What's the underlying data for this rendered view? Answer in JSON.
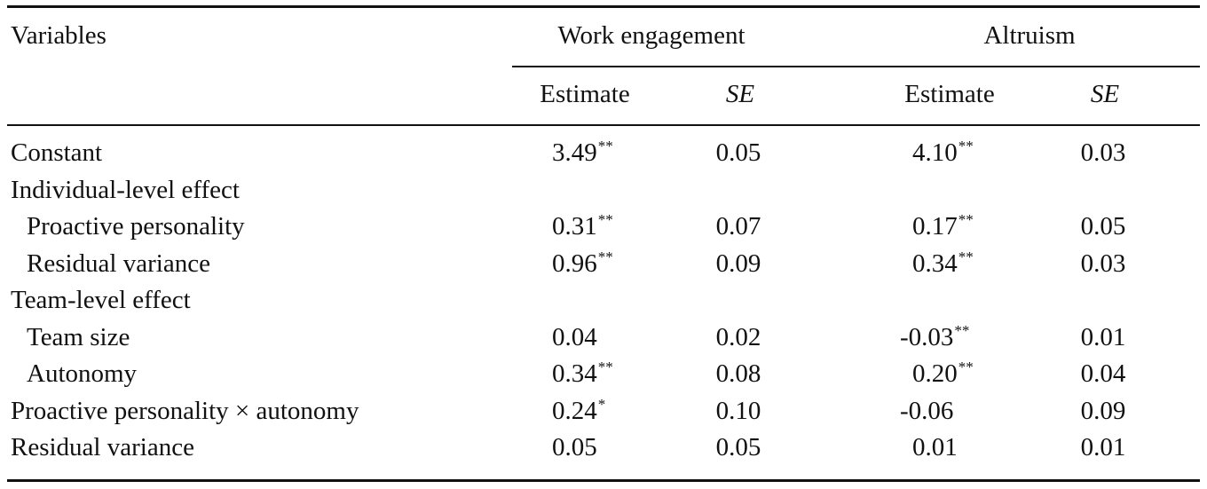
{
  "header": {
    "variables": "Variables",
    "group1": "Work engagement",
    "group2": "Altruism",
    "estimate": "Estimate",
    "se": "SE"
  },
  "rows": [
    {
      "label": "Constant",
      "we_est": "3.49",
      "we_sig": "**",
      "we_se": "0.05",
      "al_est": "4.10",
      "al_sig": "**",
      "al_se": "0.03"
    },
    {
      "label": "Individual-level effect"
    },
    {
      "label": "Proactive personality",
      "we_est": "0.31",
      "we_sig": "**",
      "we_se": "0.07",
      "al_est": "0.17",
      "al_sig": "**",
      "al_se": "0.05"
    },
    {
      "label": "Residual variance",
      "we_est": "0.96",
      "we_sig": "**",
      "we_se": "0.09",
      "al_est": "0.34",
      "al_sig": "**",
      "al_se": "0.03"
    },
    {
      "label": "Team-level effect"
    },
    {
      "label": "Team size",
      "we_est": "0.04",
      "we_sig": "",
      "we_se": "0.02",
      "al_est": "-0.03",
      "al_sig": "**",
      "al_se": "0.01"
    },
    {
      "label": "Autonomy",
      "we_est": "0.34",
      "we_sig": "**",
      "we_se": "0.08",
      "al_est": "0.20",
      "al_sig": "**",
      "al_se": "0.04"
    },
    {
      "label": "Proactive personality × autonomy",
      "we_est": "0.24",
      "we_sig": "*",
      "we_se": "0.10",
      "al_est": "-0.06",
      "al_sig": "",
      "al_se": "0.09"
    },
    {
      "label": "Residual variance",
      "we_est": "0.05",
      "we_sig": "",
      "we_se": "0.05",
      "al_est": "0.01",
      "al_sig": "",
      "al_se": "0.01"
    }
  ]
}
